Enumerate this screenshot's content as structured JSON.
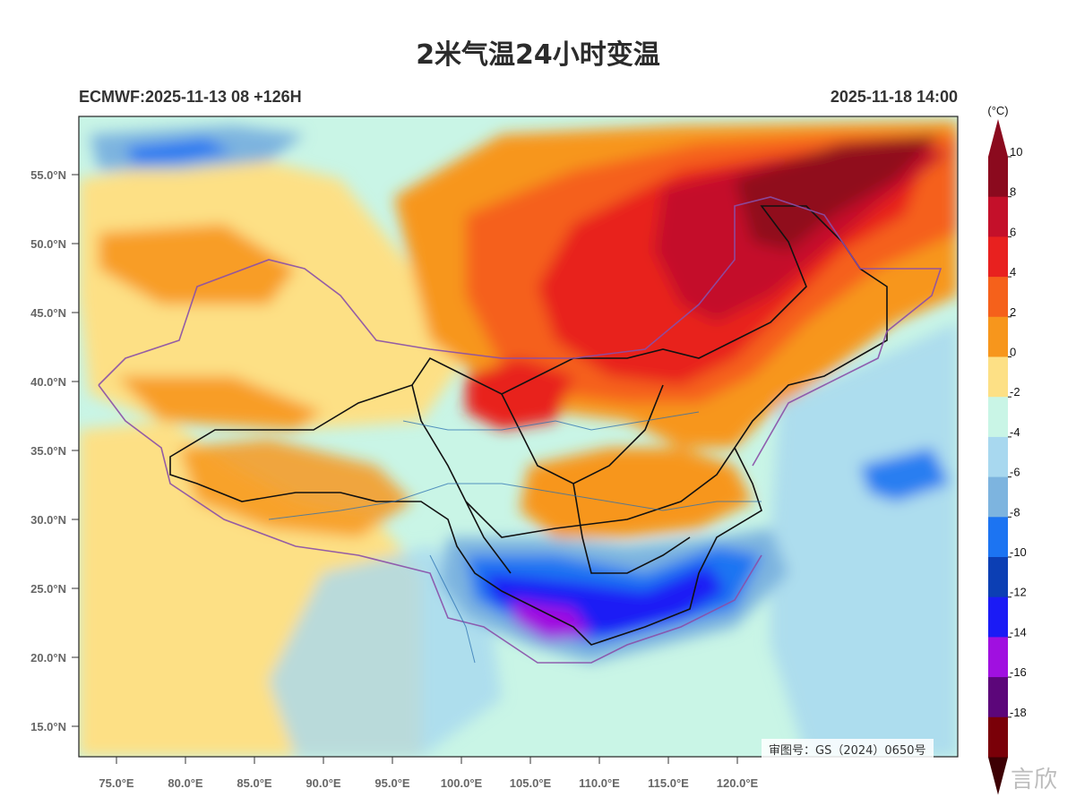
{
  "title": "2米气温24小时变温",
  "model_run": "ECMWF:2025-11-13 08 +126H",
  "valid_time": "2025-11-18 14:00",
  "approval_number": "审图号：GS（2024）0650号",
  "watermark": "言欣",
  "colorbar": {
    "unit": "(°C)",
    "levels": [
      "10",
      "8",
      "6",
      "4",
      "2",
      "0",
      "-2",
      "-4",
      "-6",
      "-8",
      "-10",
      "-12",
      "-14",
      "-16",
      "-18"
    ],
    "colors": [
      "#8b0a1e",
      "#c4102a",
      "#e8211f",
      "#f5611b",
      "#f7961c",
      "#fde085",
      "#c9f5e6",
      "#a8d8ef",
      "#7db4df",
      "#1c74f2",
      "#0c3fb4",
      "#1b1bf5",
      "#a010e0",
      "#5c067a",
      "#7a0008"
    ],
    "top_arrow_color": "#8b0a1e",
    "bottom_arrow_color": "#3d0004"
  },
  "lat_ticks": [
    "55.0°N",
    "50.0°N",
    "45.0°N",
    "40.0°N",
    "35.0°N",
    "30.0°N",
    "25.0°N",
    "20.0°N",
    "15.0°N"
  ],
  "lon_ticks": [
    "75.0°E",
    "80.0°E",
    "85.0°E",
    "90.0°E",
    "95.0°E",
    "100.0°E",
    "105.0°E",
    "110.0°E",
    "115.0°E",
    "120.0°E"
  ]
}
